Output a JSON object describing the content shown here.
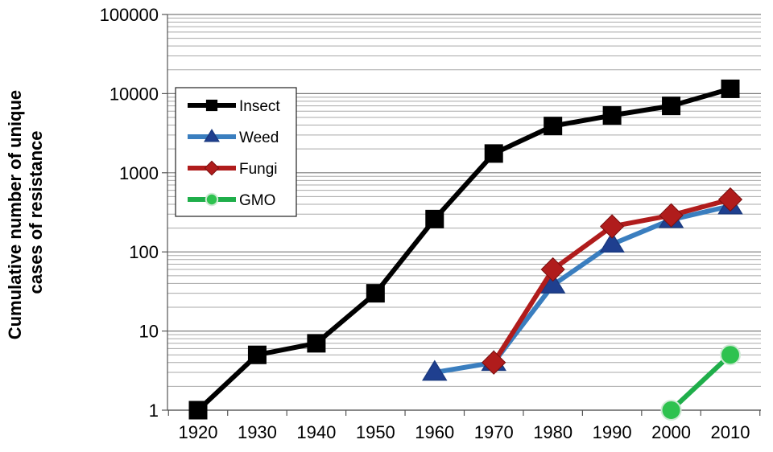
{
  "chart_data": {
    "type": "line",
    "title": "",
    "xlabel": "",
    "ylabel_lines": [
      "Cumulative number of unique",
      "cases of resistance"
    ],
    "y_scale": "log",
    "ylim": [
      1,
      100000
    ],
    "xlim": [
      1920,
      2010
    ],
    "x_ticks": [
      "1920",
      "1930",
      "1940",
      "1950",
      "1960",
      "1970",
      "1980",
      "1990",
      "2000",
      "2010"
    ],
    "y_ticks": [
      "1",
      "10",
      "100",
      "1000",
      "10000",
      "100000"
    ],
    "grid": "horizontal-minor",
    "legend_position": "upper-left",
    "series": [
      {
        "name": "Insect",
        "color": "#000000",
        "marker": "square",
        "points": [
          [
            1920,
            1
          ],
          [
            1930,
            5
          ],
          [
            1940,
            7
          ],
          [
            1950,
            30
          ],
          [
            1960,
            260
          ],
          [
            1970,
            1750
          ],
          [
            1980,
            3900
          ],
          [
            1990,
            5300
          ],
          [
            2000,
            7000
          ],
          [
            2010,
            11500
          ]
        ]
      },
      {
        "name": "Weed",
        "color": "#3a7ebf",
        "marker_color": "#1f3f8f",
        "marker": "triangle",
        "points": [
          [
            1960,
            3
          ],
          [
            1970,
            4
          ],
          [
            1980,
            38
          ],
          [
            1990,
            125
          ],
          [
            2000,
            255
          ],
          [
            2010,
            380
          ]
        ]
      },
      {
        "name": "Fungi",
        "color": "#b01c1c",
        "marker": "diamond",
        "points": [
          [
            1970,
            4
          ],
          [
            1980,
            60
          ],
          [
            1990,
            210
          ],
          [
            2000,
            290
          ],
          [
            2010,
            460
          ]
        ]
      },
      {
        "name": "GMO",
        "color": "#1fae4a",
        "marker_color": "#2ec24f",
        "marker": "circle",
        "points": [
          [
            2000,
            1
          ],
          [
            2010,
            5
          ]
        ]
      }
    ]
  }
}
